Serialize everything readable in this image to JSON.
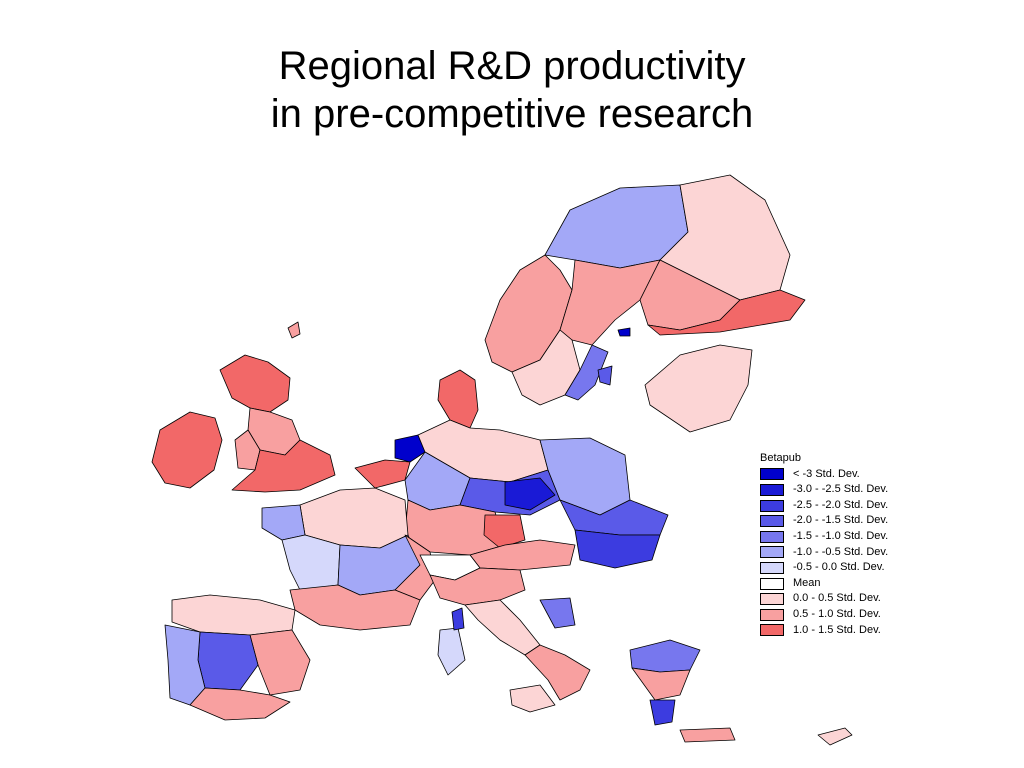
{
  "title": {
    "line1": "Regional R&D productivity",
    "line2": "in pre-competitive research"
  },
  "legend": {
    "title": "Betapub",
    "items": [
      {
        "label": "< -3 Std. Dev.",
        "color": "#0000cc"
      },
      {
        "label": "-3.0 - -2.5 Std. Dev.",
        "color": "#1a1ad6"
      },
      {
        "label": "-2.5 - -2.0 Std. Dev.",
        "color": "#3c3ce0"
      },
      {
        "label": "-2.0 - -1.5 Std. Dev.",
        "color": "#5a5ae8"
      },
      {
        "label": "-1.5 - -1.0 Std. Dev.",
        "color": "#7777ee"
      },
      {
        "label": "-1.0 - -0.5 Std. Dev.",
        "color": "#a3a8f7"
      },
      {
        "label": "-0.5 - 0.0 Std. Dev.",
        "color": "#d5d8fb"
      },
      {
        "label": "Mean",
        "color": "#ffffff"
      },
      {
        "label": "0.0 - 0.5 Std. Dev.",
        "color": "#fcd5d5"
      },
      {
        "label": "0.5 - 1.0 Std. Dev.",
        "color": "#f8a0a0"
      },
      {
        "label": "1.0 - 1.5 Std. Dev.",
        "color": "#f26868"
      }
    ]
  }
}
